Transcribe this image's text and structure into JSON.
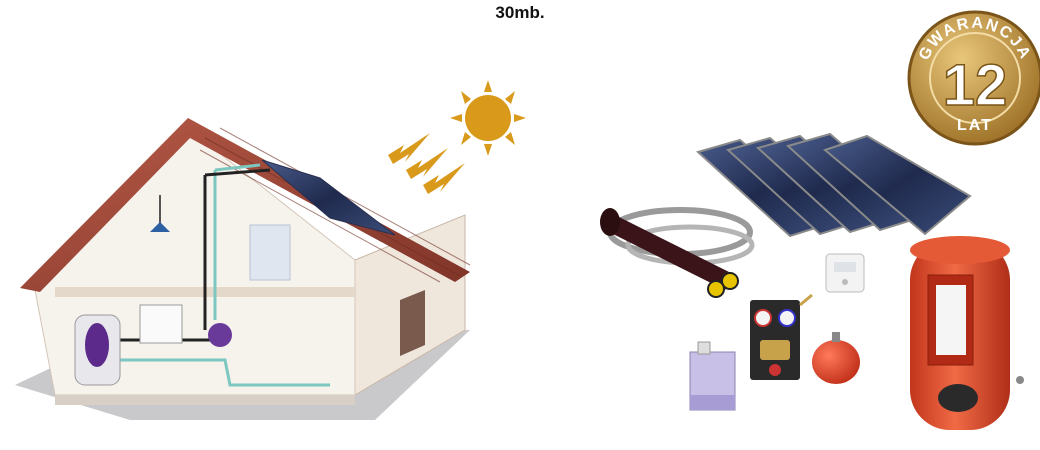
{
  "caption": "30mb.",
  "badge": {
    "top_text": "GWARANCJA",
    "number": "12",
    "bottom_text": "LAT"
  },
  "colors": {
    "roof": "#9e4a3c",
    "sun": "#d99a1c",
    "tank": "#e24a2a",
    "panel": "#2c3a63",
    "badge_gold": "#b58a3a"
  },
  "icons": {
    "house": "solar-house-illustration",
    "sun": "sun-icon",
    "arrows": "sunlight-arrows-icon",
    "panels": "solar-collector-panels",
    "pipe": "insulated-pipe-coil",
    "pump": "pump-station",
    "tank": "hot-water-tank",
    "vessel": "expansion-vessel",
    "canister": "glycol-canister",
    "controller": "solar-controller"
  }
}
